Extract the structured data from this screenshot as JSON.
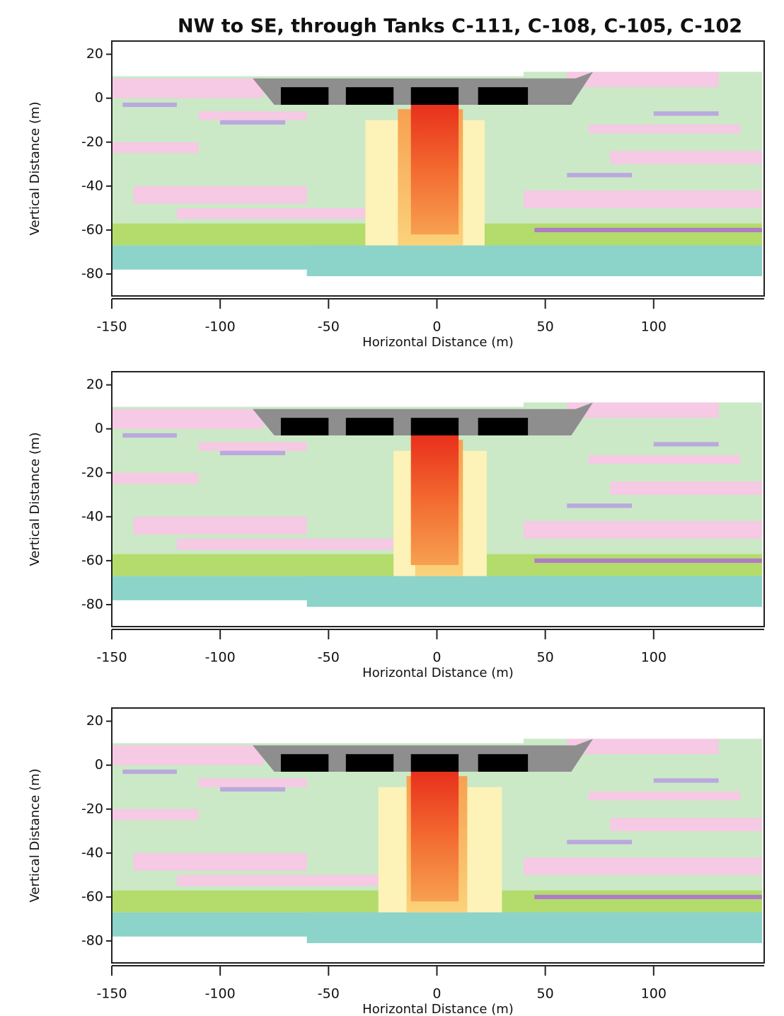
{
  "chart_data": [
    {
      "type": "section",
      "title": "NW to SE, through Tanks C-111, C-108, C-105, C-102",
      "xlabel": "Horizontal Distance (m)",
      "ylabel": "Vertical Distance (m)",
      "xlim": [
        -150,
        151
      ],
      "ylim": [
        -90,
        26
      ],
      "xticks": [
        -150,
        -100,
        -50,
        0,
        50,
        100
      ],
      "yticks": [
        20,
        0,
        -20,
        -40,
        -60,
        -80
      ]
    },
    {
      "type": "section",
      "xlabel": "Horizontal Distance (m)",
      "ylabel": "Vertical Distance (m)",
      "xlim": [
        -150,
        151
      ],
      "ylim": [
        -90,
        26
      ],
      "xticks": [
        -150,
        -100,
        -50,
        0,
        50,
        100
      ],
      "yticks": [
        20,
        0,
        -20,
        -40,
        -60,
        -80
      ]
    },
    {
      "type": "section",
      "xlabel": "Horizontal Distance (m)",
      "ylabel": "Vertical Distance (m)",
      "xlim": [
        -150,
        151
      ],
      "ylim": [
        -90,
        26
      ],
      "xticks": [
        -150,
        -100,
        -50,
        0,
        50,
        100
      ],
      "yticks": [
        20,
        0,
        -20,
        -40,
        -60,
        -80
      ]
    }
  ]
}
